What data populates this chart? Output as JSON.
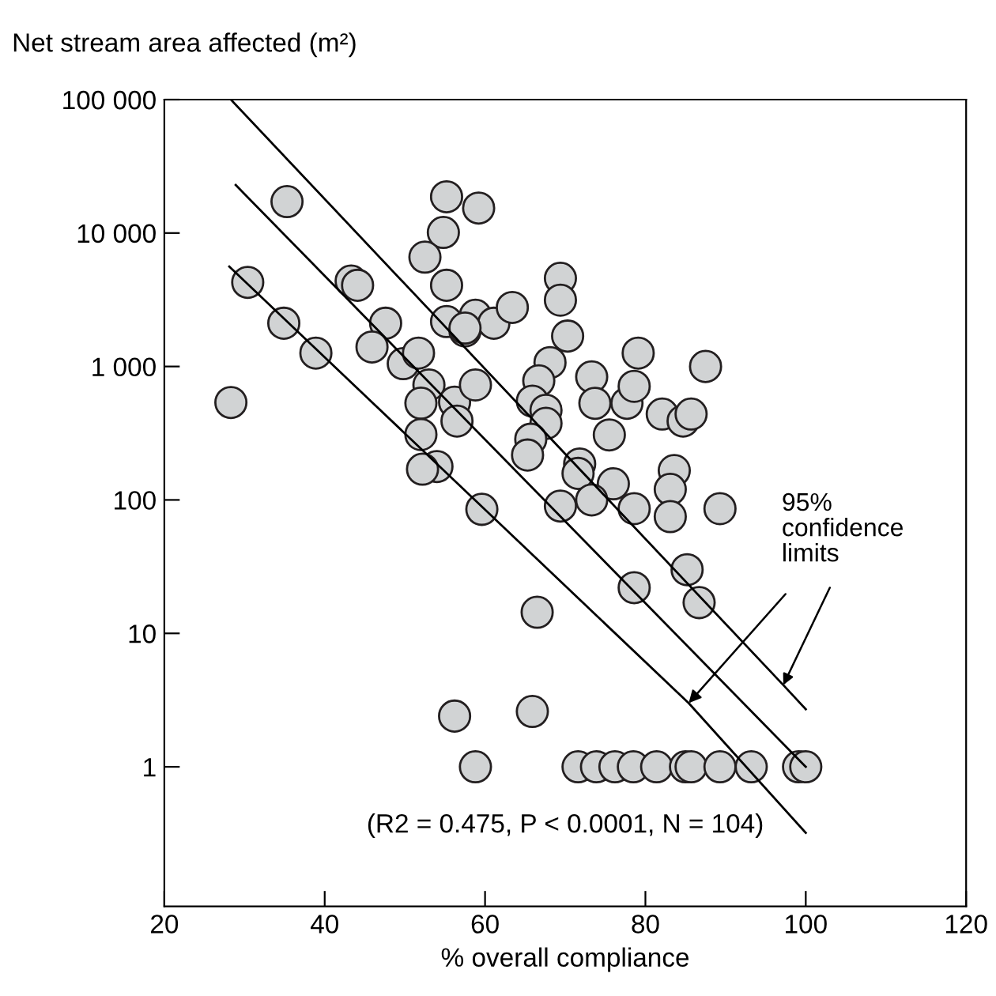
{
  "chart_data": {
    "type": "scatter",
    "xlabel": "% overall compliance",
    "ylabel": "Net stream area affected (m²)",
    "xlim": [
      20,
      120
    ],
    "xticks": [
      20,
      40,
      60,
      80,
      100,
      120
    ],
    "log": "y",
    "ylim": [
      0.09,
      100000
    ],
    "yticks": [
      1,
      10,
      100,
      {
        "value": 1000,
        "label": "1 000"
      },
      {
        "value": 10000,
        "label": "10 000"
      },
      {
        "value": 100000,
        "label": "100 000"
      }
    ],
    "grid": false,
    "series": [
      {
        "marker": "circle",
        "color": "#d1d3d4",
        "x": [
          35.3,
          30.4,
          34.9,
          38.9,
          28.3,
          43.3,
          44.1,
          47.6,
          45.9,
          49.8,
          51.7,
          53.0,
          52.0,
          52.0,
          54.0,
          52.2,
          55.2,
          59.2,
          54.8,
          52.5,
          55.2,
          55.2,
          58.8,
          57.5,
          61.1,
          63.4,
          56.2,
          56.5,
          58.8,
          59.6,
          57.5,
          69.4,
          69.4,
          70.3,
          68.1,
          66.7,
          65.9,
          67.6,
          67.6,
          65.7,
          65.3,
          73.3,
          73.7,
          77.7,
          78.6,
          79.1,
          75.5,
          82.1,
          84.7,
          85.7,
          87.5,
          71.8,
          71.6,
          76.0,
          73.3,
          78.6,
          69.4,
          83.6,
          83.1,
          83.1,
          89.3,
          85.2,
          86.7,
          78.6,
          66.5,
          56.2,
          65.9,
          58.8,
          71.6,
          73.9,
          76.2,
          78.5,
          81.4,
          85.0,
          85.7,
          89.3,
          93.2,
          99.1,
          100.0
        ],
        "values": [
          17200,
          4270,
          2110,
          1260,
          537,
          4370,
          4060,
          2110,
          1400,
          1050,
          1260,
          727,
          531,
          309,
          178,
          170,
          18700,
          15400,
          10100,
          6600,
          4060,
          2170,
          2420,
          1850,
          2110,
          2770,
          540,
          390,
          727,
          85,
          1940,
          4580,
          3140,
          1690,
          1070,
          780,
          550,
          470,
          375,
          285,
          217,
          835,
          530,
          530,
          710,
          1260,
          307,
          440,
          390,
          440,
          1000,
          186,
          158,
          132,
          100,
          86,
          90,
          166,
          120,
          75,
          86,
          30,
          17,
          22,
          14.4,
          2.4,
          2.6,
          1,
          1,
          1,
          1,
          1,
          1,
          1,
          1,
          1,
          1,
          1,
          1
        ]
      },
      {
        "type": "line",
        "color": "#000000",
        "x": [
          28.9,
          100
        ],
        "values": [
          22900,
          1
        ]
      },
      {
        "type": "line",
        "color": "#000000",
        "x": [
          28.1,
          85.4,
          100
        ],
        "values": [
          5600,
          3,
          0.32
        ]
      },
      {
        "type": "line",
        "color": "#000000",
        "x": [
          28.3,
          97.2,
          100
        ],
        "values": [
          100000,
          4.1,
          2.7
        ]
      }
    ],
    "annotations": [
      {
        "text": "95%\nconfidence\nlimits",
        "x": 85.4,
        "y": 3
      },
      "(R2 = 0.475, P < 0.0001, N = 104)"
    ]
  }
}
